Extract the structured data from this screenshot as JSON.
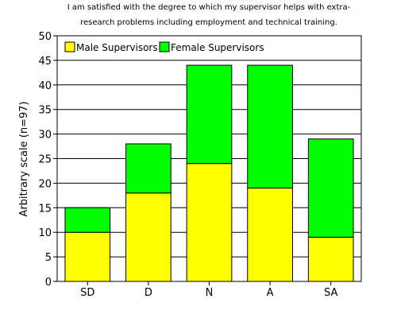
{
  "chart_data": {
    "type": "bar",
    "stacked": true,
    "title_lines": [
      "I am satisfied with the degree to which my supervisor helps with extra-",
      "research problems including employment and technical training."
    ],
    "xlabel": "",
    "ylabel": "Arbitrary scale (n=97)",
    "categories": [
      "SD",
      "D",
      "N",
      "A",
      "SA"
    ],
    "series": [
      {
        "name": "Male Supervisors",
        "color": "#ffff00",
        "values": [
          10,
          18,
          24,
          19,
          9
        ]
      },
      {
        "name": "Female Supervisors",
        "color": "#00ff00",
        "values": [
          5,
          10,
          20,
          25,
          20
        ]
      }
    ],
    "ylim": [
      0,
      50
    ],
    "yticks": [
      0,
      5,
      10,
      15,
      20,
      25,
      30,
      35,
      40,
      45,
      50
    ],
    "grid": true,
    "legend_position": "top-left"
  }
}
